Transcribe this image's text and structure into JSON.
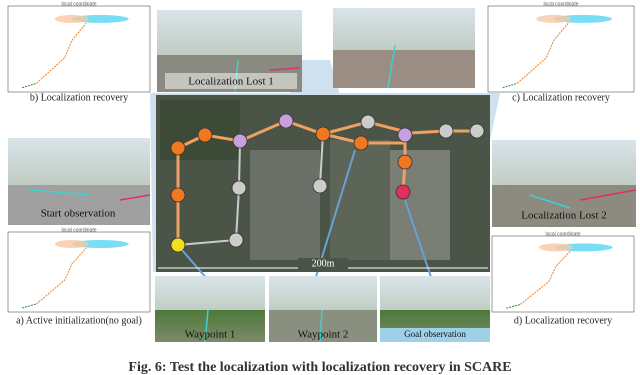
{
  "map": {
    "scale": "200m"
  },
  "photos": [
    {
      "label": "Localization Lost 1"
    },
    {
      "label": "Start observation"
    },
    {
      "label": "Localization Lost 2"
    },
    {
      "label": "Waypoint 1"
    },
    {
      "label": "Waypoint 2"
    },
    {
      "label": "Goal observation"
    }
  ],
  "plots": [
    {
      "title": "local coordinate",
      "label": "b) Localization recovery"
    },
    {
      "title": "local coordinate",
      "label": "c) Localization recovery"
    },
    {
      "title": "local coordinate",
      "label": "a) Active initialization(no goal)"
    },
    {
      "title": "local coordinate",
      "label": "d) Localization recovery"
    }
  ],
  "caption": "Fig. 6: Test the localization with localization recovery in SCARE"
}
